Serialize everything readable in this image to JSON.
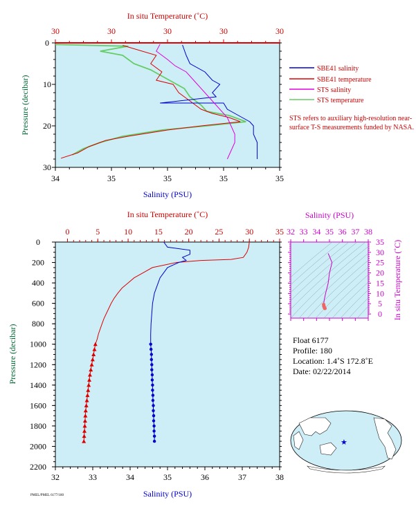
{
  "colors": {
    "plot_bg": "#cdeef7",
    "sbe_salinity": "#0000cc",
    "sbe_temperature": "#dd0000",
    "sts_salinity": "#dd00dd",
    "sts_temperature": "#66cc66",
    "temp_axis": "#cc0000",
    "sal_axis": "#0000cc",
    "pressure_axis": "#006633",
    "ts_axis": "#cc00cc"
  },
  "legend": {
    "items": [
      {
        "label": "SBE41 salinity",
        "color": "#0000cc"
      },
      {
        "label": "SBE41 temperature",
        "color": "#dd0000"
      },
      {
        "label": "STS salinity",
        "color": "#dd00dd"
      },
      {
        "label": "STS temperature",
        "color": "#66cc66"
      }
    ],
    "note": "STS refers to auxiliary high-resolution near-surface T-S measurements funded by NASA."
  },
  "info": {
    "float": "Float  6177",
    "profile": "Profile:  180",
    "location": "Location:  1.4˚S  172.8˚E",
    "date": "Date:  02/22/2014"
  },
  "footer_code": "PMEL/PMEL 6177/180",
  "chart_data": [
    {
      "type": "line",
      "name": "near-surface",
      "title_top": "In situ Temperature (˚C)",
      "xlabel": "Salinity (PSU)",
      "ylabel": "Pressure (decibar)",
      "temp_ticks": [
        "30",
        "30",
        "30",
        "30",
        "30"
      ],
      "temp_range": [
        27.5,
        31.5
      ],
      "sal_ticks": [
        "34",
        "35",
        "35",
        "35",
        "35"
      ],
      "sal_range": [
        34.6,
        35.2
      ],
      "ylim": [
        0,
        30
      ],
      "y_ticks": [
        0,
        10,
        20,
        30
      ],
      "series": [
        {
          "name": "SBE41 salinity",
          "color": "#0000cc",
          "points": [
            [
              34.94,
              0.5
            ],
            [
              34.95,
              3
            ],
            [
              34.96,
              5
            ],
            [
              35.0,
              7
            ],
            [
              35.02,
              9
            ],
            [
              35.04,
              10
            ],
            [
              35.02,
              12
            ],
            [
              35.03,
              13
            ],
            [
              34.88,
              14.5
            ],
            [
              35.05,
              14.5
            ],
            [
              35.06,
              16
            ],
            [
              35.08,
              17
            ],
            [
              35.1,
              18
            ],
            [
              35.12,
              19
            ],
            [
              35.13,
              20
            ],
            [
              35.13,
              22
            ],
            [
              35.14,
              24
            ],
            [
              35.14,
              26
            ],
            [
              35.14,
              28
            ]
          ]
        },
        {
          "name": "SBE41 temperature",
          "color": "#dd0000",
          "points": [
            [
              28.7,
              0.6
            ],
            [
              29.3,
              3
            ],
            [
              29.2,
              5
            ],
            [
              29.4,
              7
            ],
            [
              29.3,
              9
            ],
            [
              29.6,
              10
            ],
            [
              29.7,
              12
            ],
            [
              29.9,
              14
            ],
            [
              30.1,
              16
            ],
            [
              30.3,
              17
            ],
            [
              30.6,
              18
            ],
            [
              30.8,
              19
            ],
            [
              30.1,
              20
            ],
            [
              29.5,
              21
            ],
            [
              28.8,
              22.5
            ],
            [
              28.4,
              23.5
            ],
            [
              28.1,
              25
            ],
            [
              27.9,
              26.5
            ],
            [
              27.6,
              27.8
            ]
          ]
        },
        {
          "name": "STS salinity",
          "color": "#dd00dd",
          "points": [
            [
              34.88,
              0.3
            ],
            [
              34.87,
              2
            ],
            [
              34.9,
              4
            ],
            [
              34.92,
              5.5
            ],
            [
              34.95,
              7
            ],
            [
              34.97,
              9
            ],
            [
              34.98,
              10
            ],
            [
              35.0,
              12
            ],
            [
              35.02,
              14
            ],
            [
              35.04,
              16
            ],
            [
              35.06,
              18
            ],
            [
              35.07,
              20
            ],
            [
              35.08,
              22
            ],
            [
              35.08,
              24
            ],
            [
              35.07,
              26
            ],
            [
              35.06,
              28
            ]
          ]
        },
        {
          "name": "STS temperature",
          "color": "#66cc66",
          "points": [
            [
              27.5,
              0.4
            ],
            [
              28.8,
              0.8
            ],
            [
              28.3,
              2
            ],
            [
              28.7,
              3
            ],
            [
              28.9,
              5
            ],
            [
              29.2,
              6.5
            ],
            [
              29.4,
              8
            ],
            [
              29.6,
              9.5
            ],
            [
              29.8,
              11
            ],
            [
              29.9,
              13
            ],
            [
              30.1,
              15
            ],
            [
              30.2,
              16.5
            ],
            [
              30.6,
              17.5
            ],
            [
              30.9,
              19
            ],
            [
              30.2,
              20
            ],
            [
              29.4,
              21
            ],
            [
              28.7,
              22.5
            ],
            [
              28.3,
              24
            ],
            [
              28.0,
              25.5
            ],
            [
              27.8,
              27
            ]
          ]
        }
      ]
    },
    {
      "type": "line",
      "name": "full-profile",
      "title_top": "In situ Temperature (˚C)",
      "xlabel": "Salinity (PSU)",
      "ylabel": "Pressure (decibar)",
      "temp_range": [
        -2,
        35
      ],
      "temp_ticks": [
        0,
        5,
        10,
        15,
        20,
        25,
        30,
        35
      ],
      "sal_range": [
        32,
        38
      ],
      "sal_ticks": [
        32,
        33,
        34,
        35,
        36,
        37,
        38
      ],
      "ylim": [
        0,
        2200
      ],
      "y_ticks": [
        0,
        200,
        400,
        600,
        800,
        1000,
        1200,
        1400,
        1600,
        1800,
        2000,
        2200
      ],
      "temperature": {
        "name": "SBE41 temperature",
        "color": "#dd0000",
        "points": [
          [
            30.0,
            0
          ],
          [
            29.9,
            50
          ],
          [
            29.6,
            100
          ],
          [
            29.0,
            150
          ],
          [
            27.0,
            170
          ],
          [
            22.0,
            180
          ],
          [
            18.0,
            200
          ],
          [
            14.0,
            250
          ],
          [
            12.5,
            300
          ],
          [
            11.0,
            350
          ],
          [
            10.0,
            400
          ],
          [
            9.0,
            450
          ],
          [
            8.3,
            500
          ],
          [
            7.7,
            550
          ],
          [
            7.2,
            600
          ],
          [
            6.8,
            650
          ],
          [
            6.4,
            700
          ],
          [
            6.0,
            750
          ],
          [
            5.7,
            800
          ],
          [
            5.4,
            850
          ],
          [
            5.1,
            900
          ],
          [
            4.9,
            950
          ],
          [
            4.6,
            1000
          ],
          [
            4.45,
            1050
          ],
          [
            4.3,
            1100
          ],
          [
            4.15,
            1150
          ],
          [
            4.0,
            1200
          ],
          [
            3.85,
            1250
          ],
          [
            3.7,
            1300
          ],
          [
            3.6,
            1350
          ],
          [
            3.5,
            1400
          ],
          [
            3.4,
            1450
          ],
          [
            3.3,
            1500
          ],
          [
            3.2,
            1550
          ],
          [
            3.1,
            1600
          ],
          [
            3.0,
            1650
          ],
          [
            2.95,
            1700
          ],
          [
            2.9,
            1750
          ],
          [
            2.85,
            1800
          ],
          [
            2.8,
            1850
          ],
          [
            2.75,
            1900
          ],
          [
            2.7,
            1950
          ]
        ],
        "marker_from": 1000
      },
      "salinity": {
        "name": "SBE41 salinity",
        "color": "#0000cc",
        "points": [
          [
            34.9,
            0
          ],
          [
            35.0,
            50
          ],
          [
            35.6,
            80
          ],
          [
            35.6,
            120
          ],
          [
            35.4,
            150
          ],
          [
            35.5,
            180
          ],
          [
            35.3,
            200
          ],
          [
            35.0,
            250
          ],
          [
            34.9,
            300
          ],
          [
            34.8,
            350
          ],
          [
            34.75,
            400
          ],
          [
            34.65,
            500
          ],
          [
            34.6,
            600
          ],
          [
            34.58,
            700
          ],
          [
            34.56,
            800
          ],
          [
            34.55,
            900
          ],
          [
            34.55,
            1000
          ],
          [
            34.56,
            1050
          ],
          [
            34.57,
            1100
          ],
          [
            34.57,
            1150
          ],
          [
            34.58,
            1200
          ],
          [
            34.58,
            1250
          ],
          [
            34.59,
            1300
          ],
          [
            34.59,
            1350
          ],
          [
            34.6,
            1400
          ],
          [
            34.6,
            1450
          ],
          [
            34.61,
            1500
          ],
          [
            34.61,
            1550
          ],
          [
            34.62,
            1600
          ],
          [
            34.62,
            1650
          ],
          [
            34.63,
            1700
          ],
          [
            34.63,
            1750
          ],
          [
            34.64,
            1800
          ],
          [
            34.64,
            1850
          ],
          [
            34.65,
            1900
          ],
          [
            34.65,
            1950
          ]
        ],
        "marker_from": 1000
      }
    },
    {
      "type": "scatter",
      "name": "t-s-diagram",
      "title_top": "Salinity (PSU)",
      "ylabel": "In situ Temperature (˚C)",
      "sal_ticks": [
        32,
        33,
        34,
        35,
        36,
        37,
        38
      ],
      "sal_range": [
        32,
        38
      ],
      "temp_ticks": [
        0,
        5,
        10,
        15,
        20,
        25,
        30,
        35
      ],
      "temp_range": [
        -2,
        35
      ],
      "line": [
        [
          34.9,
          29.5
        ],
        [
          35.0,
          28.0
        ],
        [
          35.2,
          25.0
        ],
        [
          35.0,
          20.0
        ],
        [
          34.9,
          15.0
        ],
        [
          34.7,
          10.0
        ],
        [
          34.6,
          7.0
        ],
        [
          34.55,
          5.0
        ]
      ],
      "deep_cluster": [
        [
          34.55,
          4.6
        ],
        [
          34.56,
          4.0
        ],
        [
          34.58,
          3.5
        ],
        [
          34.6,
          3.2
        ],
        [
          34.62,
          3.0
        ],
        [
          34.63,
          2.8
        ],
        [
          34.65,
          2.7
        ]
      ]
    }
  ]
}
